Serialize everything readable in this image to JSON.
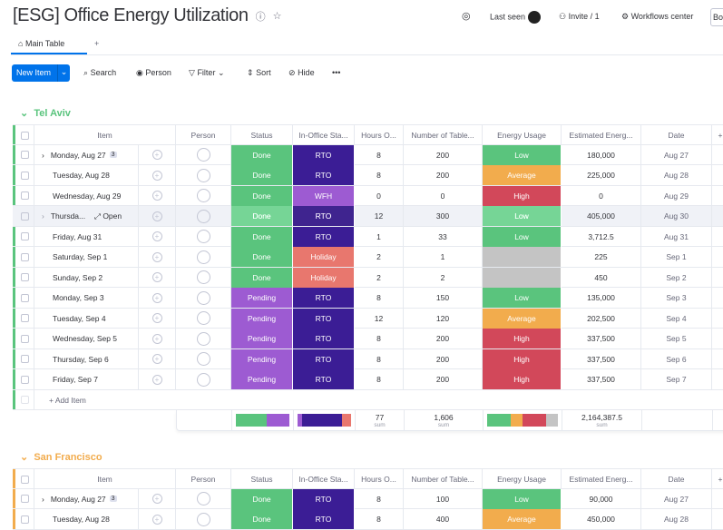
{
  "board": {
    "title": "[ESG] Office Energy Utilization",
    "info_icon": "info-icon",
    "star_icon": "star-icon"
  },
  "topbar": {
    "activity_icon": "activity-icon",
    "last_seen": "Last seen",
    "invite": "Invite / 1",
    "workflows": "Workflows center",
    "board_btn": "Boa"
  },
  "tabs": {
    "main": "Main Table",
    "add": "+"
  },
  "toolbar": {
    "new_item": "New Item",
    "search": "Search",
    "person": "Person",
    "filter": "Filter",
    "sort": "Sort",
    "hide": "Hide",
    "more": "•••"
  },
  "columns": [
    "Item",
    "Person",
    "Status",
    "In-Office Sta...",
    "Hours O...",
    "Number of Table...",
    "Energy Usage",
    "Estimated Energ...",
    "Date"
  ],
  "colors": {
    "Done": "#5ac47d",
    "Pending": "#9d5bd2",
    "RTO": "#3b1d95",
    "WFH": "#9d5bd2",
    "Holiday": "#e8776e",
    "Low": "#5ac47d",
    "Average": "#f2ac4d",
    "High": "#d2485a",
    "": "#c4c4c4",
    "telaviv": "#5ac47d",
    "sf": "#f2ac4d"
  },
  "groups": [
    {
      "name": "Tel Aviv",
      "add_item": "+ Add Item",
      "rows": [
        {
          "item": "Monday, Aug 27",
          "count": "3",
          "status": "Done",
          "office": "RTO",
          "hours": "8",
          "tables": "200",
          "energy": "Low",
          "est": "180,000",
          "date": "Aug 27"
        },
        {
          "item": "Tuesday, Aug 28",
          "status": "Done",
          "office": "RTO",
          "hours": "8",
          "tables": "200",
          "energy": "Average",
          "est": "225,000",
          "date": "Aug 28"
        },
        {
          "item": "Wednesday, Aug 29",
          "status": "Done",
          "office": "WFH",
          "hours": "0",
          "tables": "0",
          "energy": "High",
          "est": "0",
          "date": "Aug 29"
        },
        {
          "item": "Thursda...",
          "open": "Open",
          "status": "Done",
          "office": "RTO",
          "hours": "12",
          "tables": "300",
          "energy": "Low",
          "est": "405,000",
          "date": "Aug 30",
          "hover": true
        },
        {
          "item": "Friday, Aug 31",
          "status": "Done",
          "office": "RTO",
          "hours": "1",
          "tables": "33",
          "energy": "Low",
          "est": "3,712.5",
          "date": "Aug 31"
        },
        {
          "item": "Saturday, Sep 1",
          "status": "Done",
          "office": "Holiday",
          "hours": "2",
          "tables": "1",
          "energy": "",
          "est": "225",
          "date": "Sep 1"
        },
        {
          "item": "Sunday, Sep 2",
          "status": "Done",
          "office": "Holiday",
          "hours": "2",
          "tables": "2",
          "energy": "",
          "est": "450",
          "date": "Sep 2"
        },
        {
          "item": "Monday, Sep 3",
          "status": "Pending",
          "office": "RTO",
          "hours": "8",
          "tables": "150",
          "energy": "Low",
          "est": "135,000",
          "date": "Sep 3"
        },
        {
          "item": "Tuesday, Sep 4",
          "status": "Pending",
          "office": "RTO",
          "hours": "12",
          "tables": "120",
          "energy": "Average",
          "est": "202,500",
          "date": "Sep 4"
        },
        {
          "item": "Wednesday, Sep 5",
          "status": "Pending",
          "office": "RTO",
          "hours": "8",
          "tables": "200",
          "energy": "High",
          "est": "337,500",
          "date": "Sep 5"
        },
        {
          "item": "Thursday, Sep 6",
          "status": "Pending",
          "office": "RTO",
          "hours": "8",
          "tables": "200",
          "energy": "High",
          "est": "337,500",
          "date": "Sep 6"
        },
        {
          "item": "Friday, Sep 7",
          "status": "Pending",
          "office": "RTO",
          "hours": "8",
          "tables": "200",
          "energy": "High",
          "est": "337,500",
          "date": "Sep 7"
        }
      ],
      "summary": {
        "hours": "77",
        "tables": "1,606",
        "est": "2,164,387.5",
        "label": "sum",
        "status_bar": [
          [
            "Done",
            7
          ],
          [
            "Pending",
            5
          ]
        ],
        "office_bar": [
          [
            "WFH",
            1
          ],
          [
            "RTO",
            9
          ],
          [
            "Holiday",
            2
          ]
        ],
        "energy_bar": [
          [
            "Low",
            4
          ],
          [
            "Average",
            2
          ],
          [
            "High",
            4
          ],
          [
            "",
            2
          ]
        ]
      }
    },
    {
      "name": "San Francisco",
      "rows": [
        {
          "item": "Monday, Aug 27",
          "count": "3",
          "status": "Done",
          "office": "RTO",
          "hours": "8",
          "tables": "100",
          "energy": "Low",
          "est": "90,000",
          "date": "Aug 27"
        },
        {
          "item": "Tuesday, Aug 28",
          "status": "Done",
          "office": "RTO",
          "hours": "8",
          "tables": "400",
          "energy": "Average",
          "est": "450,000",
          "date": "Aug 28"
        }
      ]
    }
  ]
}
